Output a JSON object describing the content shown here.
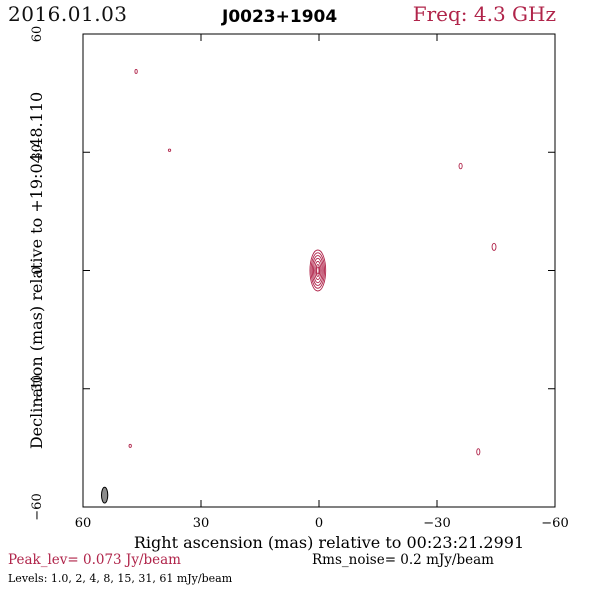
{
  "header": {
    "date": "2016.01.03",
    "source": "J0023+1904",
    "freq": "Freq: 4.3 GHz"
  },
  "footer": {
    "peak": "Peak_lev=  0.073 Jy/beam",
    "rms": "Rms_noise=  0.2 mJy/beam",
    "levels": "Levels: 1.0,   2,   4,   8,  15,  31,  61 mJy/beam"
  },
  "colors": {
    "contour": "#b0244a",
    "beam": "#8c8c8c",
    "axis": "#000000"
  },
  "chart_data": {
    "type": "contour",
    "xlabel": "Right ascension (mas) relative to 00:23:21.2991",
    "ylabel": "Declination (mas) relative to +19:04:48.110",
    "xlim": [
      60,
      -60
    ],
    "ylim": [
      -60,
      60
    ],
    "xticks": [
      60,
      30,
      0,
      -30,
      -60
    ],
    "yticks": [
      -60,
      -30,
      0,
      30,
      60
    ],
    "xtick_labels": [
      "60",
      "30",
      "0",
      "−30",
      "−60"
    ],
    "ytick_labels": [
      "−60",
      "−30",
      "0",
      "30",
      "60"
    ],
    "core": {
      "x": 0.3,
      "y": 0,
      "contours": [
        [
          2.0,
          5.2
        ],
        [
          1.7,
          4.5
        ],
        [
          1.4,
          3.8
        ],
        [
          1.1,
          3.1
        ],
        [
          0.8,
          2.3
        ],
        [
          0.5,
          1.5
        ],
        [
          0.3,
          0.9
        ]
      ]
    },
    "islands": [
      {
        "x": 46.5,
        "y": 50.5,
        "rx": 0.3,
        "ry": 0.5
      },
      {
        "x": 38.0,
        "y": 30.5,
        "rx": 0.3,
        "ry": 0.3
      },
      {
        "x": -36.0,
        "y": 26.5,
        "rx": 0.4,
        "ry": 0.7
      },
      {
        "x": -44.5,
        "y": 6.0,
        "rx": 0.5,
        "ry": 0.9
      },
      {
        "x": 48.0,
        "y": -44.5,
        "rx": 0.3,
        "ry": 0.4
      },
      {
        "x": -40.5,
        "y": -46.0,
        "rx": 0.4,
        "ry": 0.8
      }
    ],
    "beam": {
      "x": 54.5,
      "y": -57.0,
      "rx": 0.8,
      "ry": 2.0
    }
  }
}
